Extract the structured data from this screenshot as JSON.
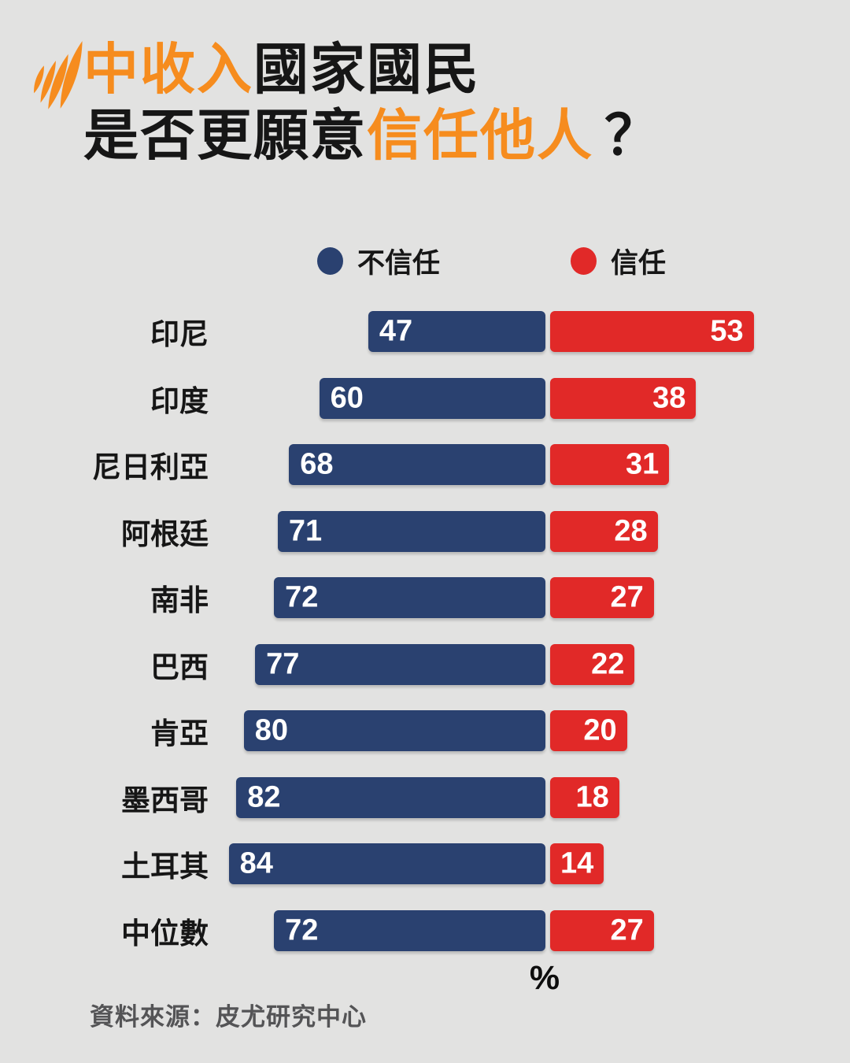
{
  "theme": {
    "background": "#e2e2e1",
    "orange": "#f68c1e",
    "ink": "#161616",
    "distrust_blue": "#2a4170",
    "trust_red": "#e12928",
    "bar_value_text": "#ffffff",
    "source_gray": "#545456"
  },
  "header": {
    "logo": "sbs-logo",
    "title_line1": [
      {
        "text": "中收入",
        "emphasis": "orange"
      },
      {
        "text": "國家國民",
        "emphasis": "ink"
      }
    ],
    "title_line2": [
      {
        "text": "是否更願意",
        "emphasis": "ink"
      },
      {
        "text": "信任他人",
        "emphasis": "orange"
      },
      {
        "text": "？",
        "emphasis": "ink"
      }
    ]
  },
  "chart_data": {
    "type": "bar",
    "orientation": "horizontal",
    "diverging": true,
    "title": "中收入國家國民是否更願意信任他人？",
    "categories": [
      "印尼",
      "印度",
      "尼日利亞",
      "阿根廷",
      "南非",
      "巴西",
      "肯亞",
      "墨西哥",
      "土耳其",
      "中位數"
    ],
    "series": [
      {
        "name": "不信任",
        "color": "#2a4170",
        "values": [
          47,
          60,
          68,
          71,
          72,
          77,
          80,
          82,
          84,
          72
        ]
      },
      {
        "name": "信任",
        "color": "#e12928",
        "values": [
          53,
          38,
          31,
          28,
          27,
          22,
          20,
          18,
          14,
          27
        ]
      }
    ],
    "unit_label": "%",
    "xlim": [
      0,
      100
    ],
    "legend_position": "top",
    "value_labels": "inside"
  },
  "footer": {
    "source": "資料來源：皮尤研究中心"
  }
}
